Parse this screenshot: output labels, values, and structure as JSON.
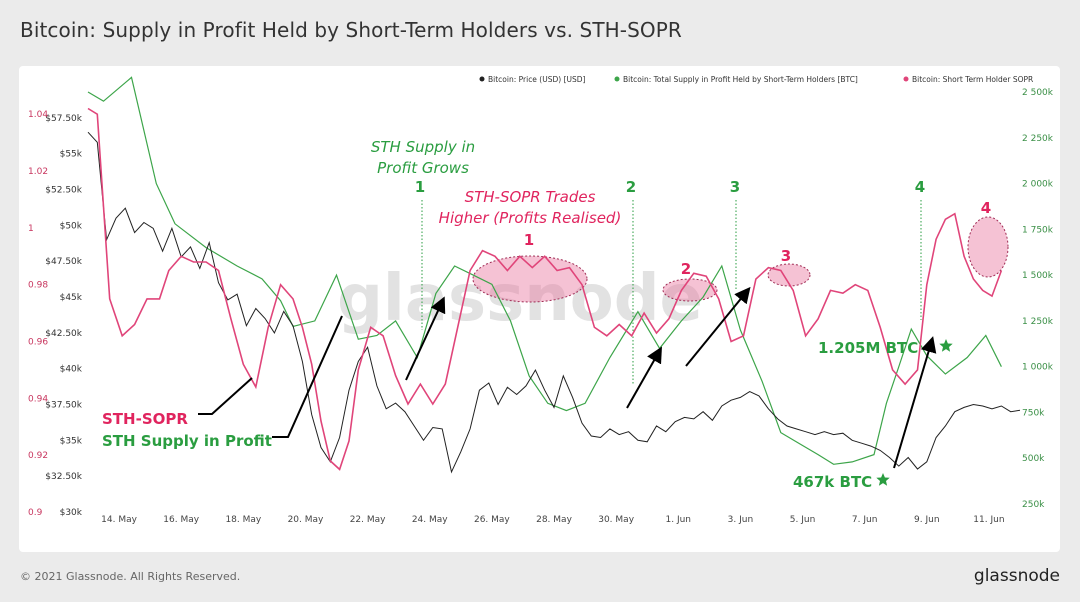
{
  "header": {
    "title": "Bitcoin: Supply in Profit Held by Short-Term Holders vs. STH-SOPR"
  },
  "footer": {
    "copyright": "© 2021 Glassnode. All Rights Reserved.",
    "brand": "glassnode"
  },
  "watermark": "glassnode",
  "colors": {
    "price": "#222222",
    "supply": "#3da54a",
    "sopr": "#e0457a",
    "supply_text": "#2a9d40",
    "sopr_text": "#e0245e"
  },
  "chart_data": {
    "type": "line",
    "x_ticks": [
      "14. May",
      "16. May",
      "18. May",
      "20. May",
      "22. May",
      "24. May",
      "26. May",
      "28. May",
      "30. May",
      "1. Jun",
      "3. Jun",
      "5. Jun",
      "7. Jun",
      "9. Jun",
      "11. Jun"
    ],
    "y_left_price_ticks": [
      "$57.50k",
      "$55k",
      "$52.50k",
      "$50k",
      "$47.50k",
      "$45k",
      "$42.50k",
      "$40k",
      "$37.50k",
      "$35k",
      "$32.50k",
      "$30k"
    ],
    "y_left_sopr_ticks": [
      "1.04",
      "1.02",
      "1",
      "0.98",
      "0.96",
      "0.94",
      "0.92",
      "0.9"
    ],
    "y_right_supply_ticks": [
      "2 500k",
      "2 250k",
      "2 000k",
      "1 750k",
      "1 500k",
      "1 250k",
      "1 000k",
      "750k",
      "500k",
      "250k"
    ],
    "price_range": [
      30000,
      58750
    ],
    "sopr_range": [
      0.9,
      1.045
    ],
    "supply_range": [
      250000,
      2500000
    ],
    "legend_position": "top-right",
    "series": [
      {
        "name": "Bitcoin: Price (USD) [USD]",
        "axis": "price",
        "values": [
          [
            12.0,
            56500
          ],
          [
            12.3,
            55800
          ],
          [
            12.6,
            49000
          ],
          [
            12.9,
            50500
          ],
          [
            13.2,
            51200
          ],
          [
            13.5,
            49500
          ],
          [
            13.8,
            50200
          ],
          [
            14.1,
            49800
          ],
          [
            14.4,
            48200
          ],
          [
            14.7,
            49800
          ],
          [
            15.0,
            47800
          ],
          [
            15.3,
            48500
          ],
          [
            15.6,
            47000
          ],
          [
            15.9,
            48800
          ],
          [
            16.2,
            46000
          ],
          [
            16.5,
            44800
          ],
          [
            16.8,
            45200
          ],
          [
            17.1,
            43000
          ],
          [
            17.4,
            44200
          ],
          [
            17.7,
            43500
          ],
          [
            18.0,
            42500
          ],
          [
            18.3,
            44000
          ],
          [
            18.6,
            43000
          ],
          [
            18.9,
            40500
          ],
          [
            19.2,
            36800
          ],
          [
            19.5,
            34500
          ],
          [
            19.8,
            33500
          ],
          [
            20.1,
            35200
          ],
          [
            20.4,
            38500
          ],
          [
            20.7,
            40500
          ],
          [
            21.0,
            41500
          ],
          [
            21.3,
            38800
          ],
          [
            21.6,
            37200
          ],
          [
            21.9,
            37600
          ],
          [
            22.2,
            37000
          ],
          [
            22.5,
            36000
          ],
          [
            22.8,
            35000
          ],
          [
            23.1,
            35900
          ],
          [
            23.4,
            35800
          ],
          [
            23.7,
            32800
          ],
          [
            24.0,
            34200
          ],
          [
            24.3,
            35800
          ],
          [
            24.6,
            38500
          ],
          [
            24.9,
            39000
          ],
          [
            25.2,
            37500
          ],
          [
            25.5,
            38700
          ],
          [
            25.8,
            38200
          ],
          [
            26.1,
            38800
          ],
          [
            26.4,
            39900
          ],
          [
            26.7,
            38500
          ],
          [
            27.0,
            37300
          ],
          [
            27.3,
            39500
          ],
          [
            27.6,
            38000
          ],
          [
            27.9,
            36200
          ],
          [
            28.2,
            35300
          ],
          [
            28.5,
            35200
          ],
          [
            28.8,
            35800
          ],
          [
            29.1,
            35400
          ],
          [
            29.4,
            35600
          ],
          [
            29.7,
            35000
          ],
          [
            30.0,
            34900
          ],
          [
            30.3,
            36000
          ],
          [
            30.6,
            35600
          ],
          [
            30.9,
            36300
          ],
          [
            31.2,
            36600
          ],
          [
            31.5,
            36500
          ],
          [
            31.8,
            37000
          ],
          [
            32.1,
            36400
          ],
          [
            32.4,
            37400
          ],
          [
            32.7,
            37800
          ],
          [
            33.0,
            38000
          ],
          [
            33.3,
            38400
          ],
          [
            33.6,
            38100
          ],
          [
            33.9,
            37200
          ],
          [
            34.2,
            36500
          ],
          [
            34.5,
            36000
          ],
          [
            34.8,
            35800
          ],
          [
            35.1,
            35600
          ],
          [
            35.4,
            35400
          ],
          [
            35.7,
            35600
          ],
          [
            36.0,
            35400
          ],
          [
            36.3,
            35500
          ],
          [
            36.6,
            35000
          ],
          [
            36.9,
            34800
          ],
          [
            37.2,
            34600
          ],
          [
            37.5,
            34300
          ],
          [
            37.8,
            33800
          ],
          [
            38.1,
            33200
          ],
          [
            38.4,
            33800
          ],
          [
            38.7,
            33000
          ],
          [
            39.0,
            33500
          ],
          [
            39.3,
            35200
          ],
          [
            39.6,
            36000
          ],
          [
            39.9,
            37000
          ],
          [
            40.2,
            37300
          ],
          [
            40.5,
            37500
          ],
          [
            40.8,
            37400
          ],
          [
            41.1,
            37200
          ],
          [
            41.4,
            37400
          ],
          [
            41.7,
            37000
          ],
          [
            42.0,
            37100
          ]
        ]
      },
      {
        "name": "Bitcoin: Total Supply in Profit Held by Short-Term Holders [BTC]",
        "axis": "supply",
        "values": [
          [
            12.0,
            2500000
          ],
          [
            12.5,
            2450000
          ],
          [
            13.4,
            2580000
          ],
          [
            14.2,
            2000000
          ],
          [
            14.8,
            1780000
          ],
          [
            15.8,
            1650000
          ],
          [
            16.8,
            1550000
          ],
          [
            17.6,
            1480000
          ],
          [
            18.2,
            1360000
          ],
          [
            18.6,
            1220000
          ],
          [
            19.3,
            1250000
          ],
          [
            20.0,
            1500000
          ],
          [
            20.7,
            1150000
          ],
          [
            21.3,
            1170000
          ],
          [
            21.9,
            1250000
          ],
          [
            22.6,
            1050000
          ],
          [
            23.2,
            1400000
          ],
          [
            23.8,
            1550000
          ],
          [
            24.4,
            1500000
          ],
          [
            25.0,
            1450000
          ],
          [
            25.6,
            1250000
          ],
          [
            26.2,
            950000
          ],
          [
            26.8,
            800000
          ],
          [
            27.4,
            760000
          ],
          [
            28.0,
            800000
          ],
          [
            28.8,
            1050000
          ],
          [
            29.7,
            1300000
          ],
          [
            30.4,
            1100000
          ],
          [
            31.1,
            1250000
          ],
          [
            31.8,
            1380000
          ],
          [
            32.4,
            1550000
          ],
          [
            33.0,
            1200000
          ],
          [
            33.7,
            920000
          ],
          [
            34.3,
            640000
          ],
          [
            34.9,
            580000
          ],
          [
            35.5,
            520000
          ],
          [
            36.0,
            467000
          ],
          [
            36.6,
            480000
          ],
          [
            37.3,
            520000
          ],
          [
            37.7,
            800000
          ],
          [
            38.1,
            1000000
          ],
          [
            38.5,
            1205000
          ],
          [
            39.0,
            1060000
          ],
          [
            39.6,
            960000
          ],
          [
            40.3,
            1050000
          ],
          [
            40.9,
            1170000
          ],
          [
            41.4,
            1000000
          ]
        ]
      },
      {
        "name": "Bitcoin: Short Term Holder SOPR",
        "axis": "sopr",
        "values": [
          [
            12.0,
            1.042
          ],
          [
            12.3,
            1.04
          ],
          [
            12.7,
            0.975
          ],
          [
            13.1,
            0.962
          ],
          [
            13.5,
            0.966
          ],
          [
            13.9,
            0.975
          ],
          [
            14.3,
            0.975
          ],
          [
            14.6,
            0.985
          ],
          [
            15.0,
            0.99
          ],
          [
            15.4,
            0.988
          ],
          [
            15.8,
            0.988
          ],
          [
            16.2,
            0.985
          ],
          [
            16.6,
            0.968
          ],
          [
            17.0,
            0.952
          ],
          [
            17.4,
            0.944
          ],
          [
            17.8,
            0.965
          ],
          [
            18.2,
            0.98
          ],
          [
            18.6,
            0.975
          ],
          [
            18.9,
            0.965
          ],
          [
            19.2,
            0.952
          ],
          [
            19.5,
            0.932
          ],
          [
            19.8,
            0.918
          ],
          [
            20.1,
            0.915
          ],
          [
            20.4,
            0.925
          ],
          [
            20.7,
            0.95
          ],
          [
            21.1,
            0.965
          ],
          [
            21.5,
            0.962
          ],
          [
            21.9,
            0.948
          ],
          [
            22.3,
            0.938
          ],
          [
            22.7,
            0.945
          ],
          [
            23.1,
            0.938
          ],
          [
            23.5,
            0.945
          ],
          [
            23.9,
            0.965
          ],
          [
            24.3,
            0.985
          ],
          [
            24.7,
            0.992
          ],
          [
            25.1,
            0.99
          ],
          [
            25.5,
            0.985
          ],
          [
            25.9,
            0.99
          ],
          [
            26.3,
            0.986
          ],
          [
            26.7,
            0.99
          ],
          [
            27.1,
            0.985
          ],
          [
            27.5,
            0.986
          ],
          [
            27.9,
            0.98
          ],
          [
            28.3,
            0.965
          ],
          [
            28.7,
            0.962
          ],
          [
            29.1,
            0.966
          ],
          [
            29.5,
            0.962
          ],
          [
            29.9,
            0.97
          ],
          [
            30.3,
            0.963
          ],
          [
            30.7,
            0.968
          ],
          [
            31.1,
            0.978
          ],
          [
            31.5,
            0.984
          ],
          [
            31.9,
            0.983
          ],
          [
            32.3,
            0.975
          ],
          [
            32.7,
            0.96
          ],
          [
            33.1,
            0.962
          ],
          [
            33.5,
            0.982
          ],
          [
            33.9,
            0.986
          ],
          [
            34.3,
            0.985
          ],
          [
            34.7,
            0.978
          ],
          [
            35.1,
            0.962
          ],
          [
            35.5,
            0.968
          ],
          [
            35.9,
            0.978
          ],
          [
            36.3,
            0.977
          ],
          [
            36.7,
            0.98
          ],
          [
            37.1,
            0.978
          ],
          [
            37.5,
            0.965
          ],
          [
            37.9,
            0.95
          ],
          [
            38.3,
            0.945
          ],
          [
            38.7,
            0.95
          ],
          [
            39.0,
            0.98
          ],
          [
            39.3,
            0.996
          ],
          [
            39.6,
            1.003
          ],
          [
            39.9,
            1.005
          ],
          [
            40.2,
            0.99
          ],
          [
            40.5,
            0.982
          ],
          [
            40.8,
            0.978
          ],
          [
            41.1,
            0.976
          ],
          [
            41.4,
            0.985
          ]
        ]
      }
    ],
    "annotations": {
      "sth_supply_grows": [
        "STH Supply in",
        "Profit Grows"
      ],
      "sopr_trades_higher": [
        "STH-SOPR Trades",
        "Higher (Profits Realised)"
      ],
      "green_numbers": [
        "1",
        "2",
        "3",
        "4"
      ],
      "pink_numbers": [
        "1",
        "2",
        "3",
        "4"
      ],
      "legend_sopr": "STH-SOPR",
      "legend_supply": "STH Supply in Profit",
      "btc_high": "1.205M BTC",
      "btc_low": "467k BTC"
    }
  }
}
